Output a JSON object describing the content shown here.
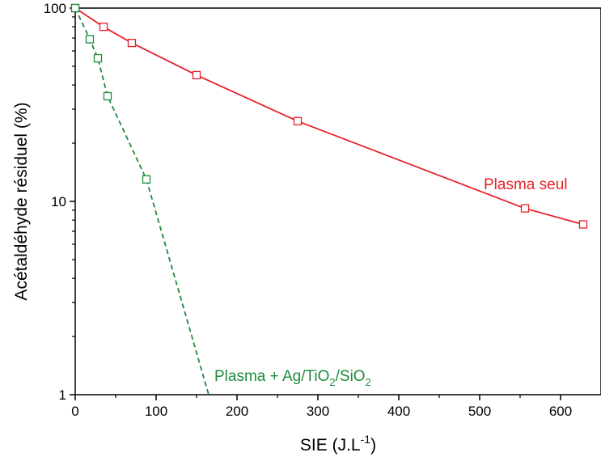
{
  "chart_data": {
    "type": "scatter",
    "xlabel": {
      "main": "SIE (J.L",
      "sup": "-1",
      "end": ")"
    },
    "ylabel": "Acétaldéhyde résiduel (%)",
    "xlim": [
      0,
      650
    ],
    "ylim": [
      1,
      100
    ],
    "yscale": "log",
    "grid": false,
    "x_ticks": [
      0,
      100,
      200,
      300,
      400,
      500,
      600
    ],
    "x_tick_labels": [
      "0",
      "100",
      "200",
      "300",
      "400",
      "500",
      "600"
    ],
    "y_ticks": [
      1,
      10,
      100
    ],
    "y_tick_labels": [
      "1",
      "10",
      "100"
    ],
    "series": [
      {
        "name": "Plasma seul",
        "color": "#e8202a",
        "line": "solid",
        "marker": "open-square",
        "x": [
          0,
          35,
          70,
          150,
          275,
          556,
          628
        ],
        "y": [
          100,
          80,
          66,
          45,
          26,
          9.2,
          7.6
        ],
        "curve_x": [
          0,
          35,
          70,
          150,
          275,
          556,
          628
        ],
        "curve_y": [
          100,
          80,
          66,
          45,
          26,
          9.2,
          7.6
        ]
      },
      {
        "name_parts": [
          "Plasma + Ag/TiO",
          "2",
          "/SiO",
          "2"
        ],
        "color": "#1e8a3c",
        "line": "dashed",
        "marker": "open-square",
        "x": [
          0,
          18,
          28,
          40,
          88
        ],
        "y": [
          100,
          69,
          55,
          35,
          13
        ],
        "curve_x": [
          0,
          18,
          28,
          40,
          88,
          165
        ],
        "curve_y": [
          100,
          69,
          55,
          35,
          13,
          1
        ]
      }
    ]
  }
}
